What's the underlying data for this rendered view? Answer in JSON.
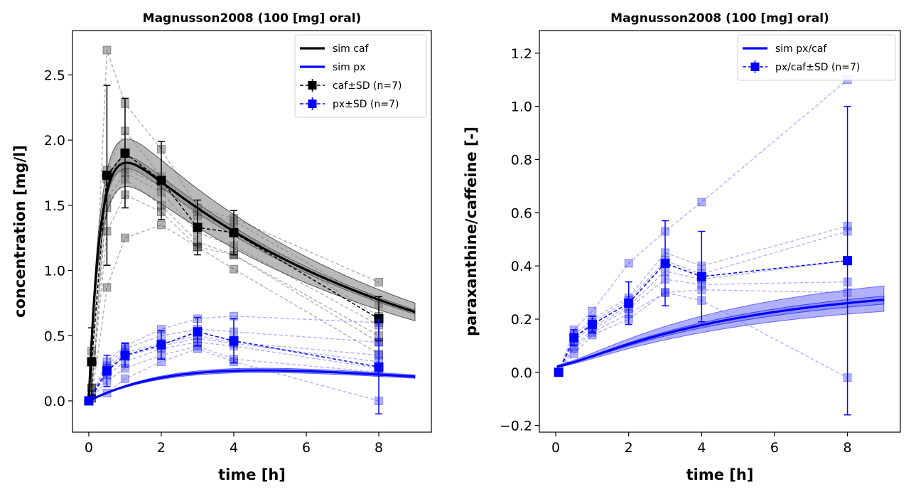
{
  "chart_data": [
    {
      "type": "line",
      "title": "Magnusson2008 (100 [mg] oral)",
      "xlabel": "time [h]",
      "ylabel": "concentration [mg/l]",
      "xlim": [
        -0.45,
        9.45
      ],
      "ylim": [
        -0.24,
        2.84
      ],
      "xticks": [
        0,
        2,
        4,
        6,
        8
      ],
      "xtick_labels": [
        "0",
        "2",
        "4",
        "6",
        "8"
      ],
      "yticks": [
        0,
        0.5,
        1,
        1.5,
        2,
        2.5
      ],
      "ytick_labels": [
        "0.0",
        "0.5",
        "1.0",
        "1.5",
        "2.0",
        "2.5"
      ],
      "grid": false,
      "legend_position": "top-right",
      "series": [
        {
          "name": "sim caf",
          "kind": "sim",
          "color": "#000000",
          "band_color": "#808080",
          "ka": 3.2,
          "ke": 0.129,
          "amp": 2.09,
          "band_scale": [
            0.9,
            1.1
          ]
        },
        {
          "name": "sim px",
          "kind": "sim",
          "color": "#0000ff",
          "band_color": "#6f6ff7",
          "k1": 0.129,
          "k2": 0.32,
          "amp": 1.072,
          "band_scale": [
            0.93,
            1.07
          ]
        },
        {
          "name": "caf±SD (n=7)",
          "kind": "data",
          "color": "#000000",
          "x": [
            0.08,
            0.5,
            1,
            2,
            3,
            4,
            8
          ],
          "y": [
            0.3,
            1.73,
            1.9,
            1.69,
            1.33,
            1.29,
            0.63
          ],
          "sd": [
            0.26,
            0.69,
            0.42,
            0.3,
            0.21,
            0.17,
            0.17
          ],
          "individuals": [
            [
              0.1,
              2.69,
              2.28,
              1.93,
              1.48,
              1.4,
              0.91
            ],
            [
              0.02,
              1.77,
              2.07,
              1.72,
              1.45,
              1.38,
              0.74
            ],
            [
              0.38,
              1.7,
              1.78,
              1.65,
              1.42,
              1.33,
              0.65
            ],
            [
              0.05,
              1.55,
              1.75,
              1.6,
              1.29,
              1.19,
              0.58
            ],
            [
              0.3,
              1.48,
              1.7,
              1.5,
              1.22,
              1.12,
              0.5
            ],
            [
              0.1,
              1.3,
              1.58,
              1.45,
              1.18,
              1.12,
              0.45
            ],
            [
              0.02,
              0.87,
              1.25,
              1.35,
              1.18,
              1.01,
              0.36
            ]
          ]
        },
        {
          "name": "px±SD (n=7)",
          "kind": "data",
          "color": "#0000ff",
          "x": [
            0,
            0.5,
            1,
            2,
            3,
            4,
            8
          ],
          "y": [
            0,
            0.23,
            0.35,
            0.43,
            0.53,
            0.46,
            0.26
          ],
          "sd": [
            0.01,
            0.12,
            0.09,
            0.11,
            0.11,
            0.17,
            0.36
          ],
          "individuals": [
            [
              0,
              0.3,
              0.42,
              0.55,
              0.63,
              0.65,
              0.6
            ],
            [
              0,
              0.27,
              0.4,
              0.5,
              0.55,
              0.53,
              0.45
            ],
            [
              0,
              0.25,
              0.37,
              0.44,
              0.5,
              0.45,
              0.35
            ],
            [
              0,
              0.22,
              0.34,
              0.42,
              0.48,
              0.44,
              0.3
            ],
            [
              0,
              0.2,
              0.3,
              0.4,
              0.45,
              0.42,
              0.25
            ],
            [
              0,
              0.15,
              0.25,
              0.35,
              0.42,
              0.32,
              0.22
            ],
            [
              0,
              0.06,
              0.17,
              0.3,
              0.4,
              0.3,
              0.0
            ]
          ]
        }
      ]
    },
    {
      "type": "line",
      "title": "Magnusson2008 (100 [mg] oral)",
      "xlabel": "time [h]",
      "ylabel": "paraxanthine/caffeine [-]",
      "xlim": [
        -0.45,
        9.45
      ],
      "ylim": [
        -0.225,
        1.285
      ],
      "xticks": [
        0,
        2,
        4,
        6,
        8
      ],
      "xtick_labels": [
        "0",
        "2",
        "4",
        "6",
        "8"
      ],
      "yticks": [
        -0.2,
        0,
        0.2,
        0.4,
        0.6,
        0.8,
        1.0,
        1.2
      ],
      "ytick_labels": [
        "−0.2",
        "0.0",
        "0.2",
        "0.4",
        "0.6",
        "0.8",
        "1.0",
        "1.2"
      ],
      "grid": false,
      "legend_position": "top-right",
      "series": [
        {
          "name": "sim px/caf",
          "kind": "ratio",
          "color": "#0000ff",
          "band_color": "#6f6ff7",
          "caf": {
            "ka": 3.2,
            "ke": 0.129,
            "amp": 2.09
          },
          "px": {
            "k1": 0.129,
            "k2": 0.32,
            "amp": 1.072
          },
          "band_outer": [
            0.84,
            1.19
          ],
          "band_inner": [
            0.94,
            1.05
          ]
        },
        {
          "name": "px/caf±SD (n=7)",
          "kind": "data",
          "color": "#0000ff",
          "x": [
            0.08,
            0.5,
            1,
            2,
            3,
            4,
            8
          ],
          "y": [
            0,
            0.13,
            0.18,
            0.26,
            0.41,
            0.36,
            0.42
          ],
          "sd": [
            0.01,
            0.03,
            0.03,
            0.08,
            0.16,
            0.17,
            0.58
          ],
          "individuals": [
            [
              0,
              0.16,
              0.23,
              0.41,
              0.53,
              0.64,
              1.1
            ],
            [
              0,
              0.14,
              0.2,
              0.28,
              0.45,
              0.4,
              0.55
            ],
            [
              0,
              0.13,
              0.19,
              0.27,
              0.42,
              0.37,
              0.53
            ],
            [
              0,
              0.12,
              0.17,
              0.25,
              0.38,
              0.35,
              0.42
            ],
            [
              0,
              0.1,
              0.16,
              0.24,
              0.35,
              0.33,
              0.34
            ],
            [
              0,
              0.09,
              0.15,
              0.22,
              0.3,
              0.31,
              0.3
            ],
            [
              0,
              0.07,
              0.14,
              0.2,
              0.3,
              0.27,
              -0.02
            ]
          ]
        }
      ]
    }
  ]
}
